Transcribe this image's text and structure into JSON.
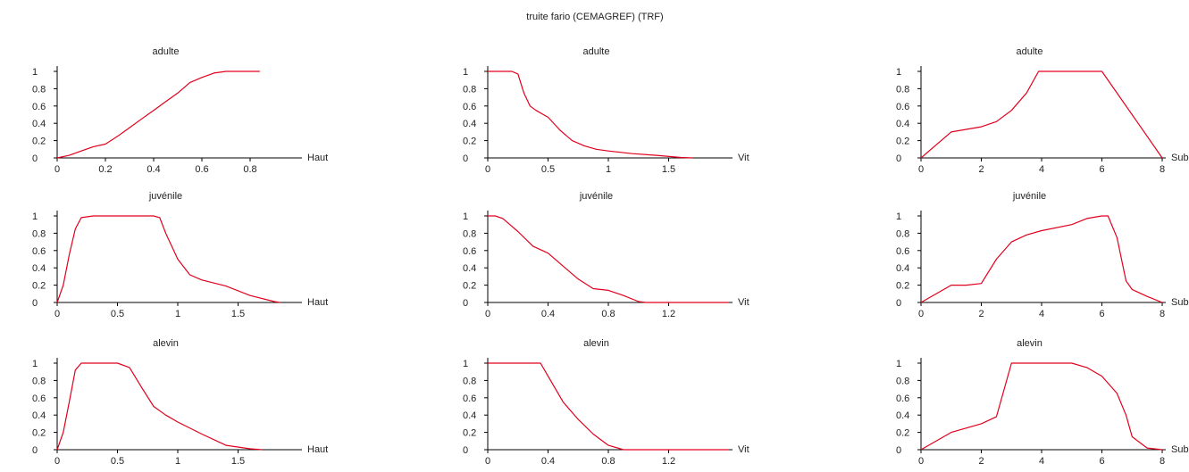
{
  "title": "truite fario (CEMAGREF)   (TRF)",
  "chart_data": [
    {
      "type": "line",
      "title": "adulte",
      "xlabel": "Haut",
      "xlim": [
        0,
        1.0
      ],
      "ylim": [
        0,
        1
      ],
      "xticks": [
        0,
        0.2,
        0.4,
        0.6,
        0.8
      ],
      "xtick_labels": [
        "0",
        "0.2",
        "0.4",
        "0.6",
        "0.8"
      ],
      "yticks": [
        0,
        0.2,
        0.4,
        0.6,
        0.8,
        1
      ],
      "ytick_labels": [
        "0",
        "0.2",
        "0.4",
        "0.6",
        "0.8",
        "1"
      ],
      "series": [
        {
          "color": "#e0001c",
          "x": [
            0,
            0.05,
            0.1,
            0.15,
            0.2,
            0.25,
            0.3,
            0.35,
            0.4,
            0.45,
            0.5,
            0.55,
            0.6,
            0.65,
            0.7,
            0.75,
            0.8,
            0.84
          ],
          "y": [
            0,
            0.03,
            0.08,
            0.13,
            0.16,
            0.25,
            0.35,
            0.45,
            0.55,
            0.65,
            0.75,
            0.87,
            0.93,
            0.98,
            1,
            1,
            1,
            1
          ]
        }
      ]
    },
    {
      "type": "line",
      "title": "adulte",
      "xlabel": "Vit",
      "xlim": [
        0,
        2.0
      ],
      "ylim": [
        0,
        1
      ],
      "xticks": [
        0,
        0.5,
        1,
        1.5
      ],
      "xtick_labels": [
        "0",
        "0.5",
        "1",
        "1.5"
      ],
      "yticks": [
        0,
        0.2,
        0.4,
        0.6,
        0.8,
        1
      ],
      "ytick_labels": [
        "0",
        "0.2",
        "0.4",
        "0.6",
        "0.8",
        "1"
      ],
      "series": [
        {
          "color": "#e0001c",
          "x": [
            0,
            0.1,
            0.2,
            0.25,
            0.3,
            0.35,
            0.4,
            0.5,
            0.6,
            0.7,
            0.8,
            0.9,
            1.0,
            1.2,
            1.4,
            1.6,
            1.7
          ],
          "y": [
            1,
            1,
            1,
            0.97,
            0.75,
            0.6,
            0.55,
            0.47,
            0.32,
            0.2,
            0.14,
            0.1,
            0.08,
            0.05,
            0.03,
            0.005,
            0
          ]
        }
      ]
    },
    {
      "type": "line",
      "title": "adulte",
      "xlabel": "Sub",
      "xlim": [
        0,
        8
      ],
      "ylim": [
        0,
        1
      ],
      "xticks": [
        0,
        2,
        4,
        6,
        8
      ],
      "xtick_labels": [
        "0",
        "2",
        "4",
        "6",
        "8"
      ],
      "yticks": [
        0,
        0.2,
        0.4,
        0.6,
        0.8,
        1
      ],
      "ytick_labels": [
        "0",
        "0.2",
        "0.4",
        "0.6",
        "0.8",
        "1"
      ],
      "series": [
        {
          "color": "#e0001c",
          "x": [
            0,
            0.5,
            1,
            1.5,
            2,
            2.5,
            3,
            3.5,
            3.9,
            4.5,
            5,
            5.5,
            6,
            7,
            8
          ],
          "y": [
            0,
            0.15,
            0.3,
            0.33,
            0.36,
            0.42,
            0.55,
            0.75,
            1,
            1,
            1,
            1,
            1,
            0.5,
            0
          ]
        }
      ]
    },
    {
      "type": "line",
      "title": "juvénile",
      "xlabel": "Haut",
      "xlim": [
        0,
        2.0
      ],
      "ylim": [
        0,
        1
      ],
      "xticks": [
        0,
        0.5,
        1,
        1.5
      ],
      "xtick_labels": [
        "0",
        "0.5",
        "1",
        "1.5"
      ],
      "yticks": [
        0,
        0.2,
        0.4,
        0.6,
        0.8,
        1
      ],
      "ytick_labels": [
        "0",
        "0.2",
        "0.4",
        "0.6",
        "0.8",
        "1"
      ],
      "series": [
        {
          "color": "#e0001c",
          "x": [
            0,
            0.05,
            0.1,
            0.15,
            0.2,
            0.3,
            0.5,
            0.7,
            0.8,
            0.85,
            0.9,
            1.0,
            1.1,
            1.2,
            1.4,
            1.6,
            1.8,
            1.85
          ],
          "y": [
            0,
            0.2,
            0.55,
            0.85,
            0.98,
            1,
            1,
            1,
            1,
            0.98,
            0.8,
            0.5,
            0.32,
            0.26,
            0.19,
            0.08,
            0.01,
            0
          ]
        }
      ]
    },
    {
      "type": "line",
      "title": "juvénile",
      "xlabel": "Vit",
      "xlim": [
        0,
        1.6
      ],
      "ylim": [
        0,
        1
      ],
      "xticks": [
        0,
        0.4,
        0.8,
        1.2
      ],
      "xtick_labels": [
        "0",
        "0.4",
        "0.8",
        "1.2"
      ],
      "yticks": [
        0,
        0.2,
        0.4,
        0.6,
        0.8,
        1
      ],
      "ytick_labels": [
        "0",
        "0.2",
        "0.4",
        "0.6",
        "0.8",
        "1"
      ],
      "series": [
        {
          "color": "#e0001c",
          "x": [
            0,
            0.05,
            0.1,
            0.2,
            0.3,
            0.4,
            0.5,
            0.6,
            0.7,
            0.8,
            0.9,
            1.0,
            1.05,
            1.6
          ],
          "y": [
            1,
            1,
            0.97,
            0.82,
            0.65,
            0.57,
            0.42,
            0.27,
            0.16,
            0.14,
            0.08,
            0.01,
            0,
            0
          ]
        }
      ]
    },
    {
      "type": "line",
      "title": "juvénile",
      "xlabel": "Sub",
      "xlim": [
        0,
        8
      ],
      "ylim": [
        0,
        1
      ],
      "xticks": [
        0,
        2,
        4,
        6,
        8
      ],
      "xtick_labels": [
        "0",
        "2",
        "4",
        "6",
        "8"
      ],
      "yticks": [
        0,
        0.2,
        0.4,
        0.6,
        0.8,
        1
      ],
      "ytick_labels": [
        "0",
        "0.2",
        "0.4",
        "0.6",
        "0.8",
        "1"
      ],
      "series": [
        {
          "color": "#e0001c",
          "x": [
            0,
            1,
            1.5,
            2,
            2.5,
            3,
            3.5,
            4,
            5,
            5.5,
            6,
            6.2,
            6.5,
            6.8,
            7,
            7.5,
            8
          ],
          "y": [
            0,
            0.2,
            0.2,
            0.22,
            0.5,
            0.7,
            0.78,
            0.83,
            0.9,
            0.97,
            1,
            1,
            0.75,
            0.25,
            0.15,
            0.07,
            0
          ]
        }
      ]
    },
    {
      "type": "line",
      "title": "alevin",
      "xlabel": "Haut",
      "xlim": [
        0,
        2.0
      ],
      "ylim": [
        0,
        1
      ],
      "xticks": [
        0,
        0.5,
        1,
        1.5
      ],
      "xtick_labels": [
        "0",
        "0.5",
        "1",
        "1.5"
      ],
      "yticks": [
        0,
        0.2,
        0.4,
        0.6,
        0.8,
        1
      ],
      "ytick_labels": [
        "0",
        "0.2",
        "0.4",
        "0.6",
        "0.8",
        "1"
      ],
      "series": [
        {
          "color": "#e0001c",
          "x": [
            0,
            0.05,
            0.1,
            0.15,
            0.2,
            0.3,
            0.5,
            0.6,
            0.7,
            0.8,
            0.9,
            1.0,
            1.2,
            1.4,
            1.6,
            1.7
          ],
          "y": [
            0,
            0.2,
            0.55,
            0.92,
            1,
            1,
            1,
            0.95,
            0.72,
            0.5,
            0.4,
            0.32,
            0.18,
            0.05,
            0.01,
            0
          ]
        }
      ]
    },
    {
      "type": "line",
      "title": "alevin",
      "xlabel": "Vit",
      "xlim": [
        0,
        1.6
      ],
      "ylim": [
        0,
        1
      ],
      "xticks": [
        0,
        0.4,
        0.8,
        1.2
      ],
      "xtick_labels": [
        "0",
        "0.4",
        "0.8",
        "1.2"
      ],
      "yticks": [
        0,
        0.2,
        0.4,
        0.6,
        0.8,
        1
      ],
      "ytick_labels": [
        "0",
        "0.2",
        "0.4",
        "0.6",
        "0.8",
        "1"
      ],
      "series": [
        {
          "color": "#e0001c",
          "x": [
            0,
            0.1,
            0.2,
            0.35,
            0.4,
            0.5,
            0.6,
            0.7,
            0.8,
            0.9,
            1.6
          ],
          "y": [
            1,
            1,
            1,
            1,
            0.85,
            0.55,
            0.35,
            0.18,
            0.05,
            0,
            0
          ]
        }
      ]
    },
    {
      "type": "line",
      "title": "alevin",
      "xlabel": "Sub",
      "xlim": [
        0,
        8
      ],
      "ylim": [
        0,
        1
      ],
      "xticks": [
        0,
        2,
        4,
        6,
        8
      ],
      "xtick_labels": [
        "0",
        "2",
        "4",
        "6",
        "8"
      ],
      "yticks": [
        0,
        0.2,
        0.4,
        0.6,
        0.8,
        1
      ],
      "ytick_labels": [
        "0",
        "0.2",
        "0.4",
        "0.6",
        "0.8",
        "1"
      ],
      "series": [
        {
          "color": "#e0001c",
          "x": [
            0,
            1,
            2,
            2.5,
            3,
            3.5,
            4,
            5,
            5.5,
            6,
            6.5,
            6.8,
            7,
            7.5,
            8
          ],
          "y": [
            0,
            0.2,
            0.3,
            0.38,
            1,
            1,
            1,
            1,
            0.95,
            0.85,
            0.65,
            0.4,
            0.15,
            0.02,
            0
          ]
        }
      ]
    }
  ]
}
